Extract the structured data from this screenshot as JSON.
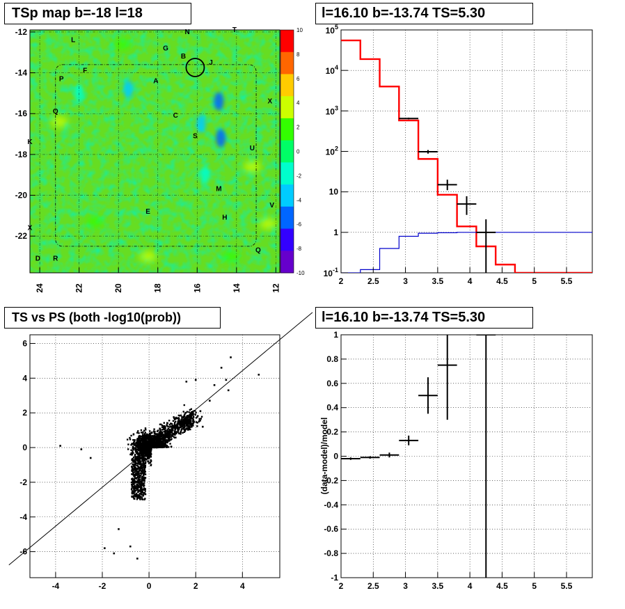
{
  "chart_data": [
    {
      "panel": "tsp-map",
      "type": "heatmap",
      "title": "TSp map b=-18 l=18",
      "xlabel": "",
      "ylabel": "",
      "x_ticks": [
        "24",
        "22",
        "20",
        "18",
        "16",
        "14",
        "12"
      ],
      "x_tick_values": [
        24,
        22,
        20,
        18,
        16,
        14,
        12
      ],
      "xlim": [
        24.5,
        11.8
      ],
      "y_ticks": [
        "-12",
        "-14",
        "-16",
        "-18",
        "-20",
        "-22"
      ],
      "y_tick_values": [
        -12,
        -14,
        -16,
        -18,
        -20,
        -22
      ],
      "ylim": [
        -23.8,
        -11.9
      ],
      "colorbar_ticks": [
        "10",
        "8",
        "6",
        "4",
        "2",
        "0",
        "-2",
        "-4",
        "-6",
        "-8",
        "-10"
      ],
      "colorbar_range": [
        -10,
        10
      ],
      "colorbar_colors": [
        "#ff0000",
        "#ff6600",
        "#ffcc00",
        "#ccff00",
        "#33ff00",
        "#00ff66",
        "#00ffcc",
        "#00ccff",
        "#0066ff",
        "#3300ff",
        "#6600cc"
      ],
      "background_value": 0.8,
      "labels": [
        {
          "text": "N",
          "l": 16.5,
          "b": -12.1
        },
        {
          "text": "T",
          "l": 14.1,
          "b": -12.0
        },
        {
          "text": "L",
          "l": 22.3,
          "b": -12.5
        },
        {
          "text": "G",
          "l": 17.6,
          "b": -12.9
        },
        {
          "text": "B",
          "l": 16.7,
          "b": -13.3
        },
        {
          "text": "J",
          "l": 15.3,
          "b": -13.6
        },
        {
          "text": "F",
          "l": 21.7,
          "b": -14.0
        },
        {
          "text": "P",
          "l": 22.9,
          "b": -14.4
        },
        {
          "text": "A",
          "l": 18.1,
          "b": -14.5
        },
        {
          "text": "X",
          "l": 12.3,
          "b": -15.5
        },
        {
          "text": "Q",
          "l": 23.2,
          "b": -16.0
        },
        {
          "text": "C",
          "l": 17.1,
          "b": -16.2
        },
        {
          "text": "S",
          "l": 16.1,
          "b": -17.2
        },
        {
          "text": "K",
          "l": 24.5,
          "b": -17.5
        },
        {
          "text": "U",
          "l": 13.2,
          "b": -17.8
        },
        {
          "text": "M",
          "l": 14.9,
          "b": -19.8
        },
        {
          "text": "V",
          "l": 12.2,
          "b": -20.6
        },
        {
          "text": "E",
          "l": 18.5,
          "b": -20.9
        },
        {
          "text": "H",
          "l": 14.6,
          "b": -21.2
        },
        {
          "text": "X",
          "l": 24.5,
          "b": -21.7
        },
        {
          "text": "Q",
          "l": 12.9,
          "b": -22.8
        },
        {
          "text": "D",
          "l": 24.1,
          "b": -23.2
        },
        {
          "text": "R",
          "l": 23.2,
          "b": -23.2
        }
      ],
      "circle": {
        "l": 16.1,
        "b": -13.74
      },
      "hotspots": [
        {
          "l": 23.0,
          "b": -16.4,
          "v": 4
        },
        {
          "l": 13.2,
          "b": -18.6,
          "v": 4
        },
        {
          "l": 12.4,
          "b": -21.4,
          "v": 4
        },
        {
          "l": 18.5,
          "b": -23.0,
          "v": 4
        },
        {
          "l": 14.3,
          "b": -23.0,
          "v": 3
        },
        {
          "l": 19.8,
          "b": -12.6,
          "v": 3
        },
        {
          "l": 21.2,
          "b": -21.3,
          "v": 3
        }
      ],
      "coldspots": [
        {
          "l": 14.9,
          "b": -15.4,
          "v": -6
        },
        {
          "l": 14.8,
          "b": -17.2,
          "v": -5
        },
        {
          "l": 15.8,
          "b": -16.5,
          "v": -3
        },
        {
          "l": 19.5,
          "b": -14.8,
          "v": -3
        },
        {
          "l": 22.0,
          "b": -15.0,
          "v": -2
        },
        {
          "l": 15.6,
          "b": -19.0,
          "v": -2
        }
      ]
    },
    {
      "panel": "spectrum",
      "type": "line",
      "title": "l=16.10 b=-13.74 TS=5.30",
      "xlabel": "",
      "ylabel": "",
      "y_scale": "log",
      "xlim": [
        2,
        5.9
      ],
      "ylim": [
        0.1,
        100000
      ],
      "grid": true,
      "x_ticks": [
        "2",
        "2.5",
        "3",
        "3.5",
        "4",
        "4.5",
        "5",
        "5.5"
      ],
      "x_tick_values": [
        2,
        2.5,
        3,
        3.5,
        4,
        4.5,
        5,
        5.5
      ],
      "y_ticks": [
        "10^-1",
        "1",
        "10",
        "10^2",
        "10^3",
        "10^4",
        "10^5"
      ],
      "y_tick_values": [
        0.1,
        1,
        10,
        100,
        1000,
        10000,
        100000
      ],
      "bin_edges": [
        2.0,
        2.3,
        2.6,
        2.9,
        3.2,
        3.5,
        3.8,
        4.1,
        4.4,
        4.7,
        5.0,
        5.3,
        5.6,
        5.9
      ],
      "series": [
        {
          "name": "",
          "color": "#ff0000",
          "values": [
            55000,
            19000,
            4000,
            580,
            65,
            8.5,
            1.4,
            0.45,
            0.16,
            0.1,
            0.1,
            0.1,
            0.1
          ]
        },
        {
          "name": "",
          "color": "#0000cc",
          "values": [
            0.1,
            0.12,
            0.4,
            0.8,
            0.95,
            0.98,
            1.0,
            1.0,
            1.0,
            1.0,
            1.0,
            1.0,
            1.0
          ]
        }
      ],
      "data_points": [
        {
          "x": 3.05,
          "xerr": 0.15,
          "y": 650,
          "ylo": 620,
          "yhi": 680
        },
        {
          "x": 3.35,
          "xerr": 0.15,
          "y": 98,
          "ylo": 88,
          "yhi": 108
        },
        {
          "x": 3.65,
          "xerr": 0.15,
          "y": 15,
          "ylo": 11,
          "yhi": 20
        },
        {
          "x": 3.95,
          "xerr": 0.15,
          "y": 5,
          "ylo": 2.7,
          "yhi": 7.8
        },
        {
          "x": 4.25,
          "xerr": 0.15,
          "y": 1,
          "ylo": 0.1,
          "yhi": 2.1
        }
      ]
    },
    {
      "panel": "ts-vs-ps",
      "type": "scatter",
      "title": "TS vs PS (both -log10(prob))",
      "xlabel": "",
      "ylabel": "",
      "xlim": [
        -5.1,
        5.6
      ],
      "ylim": [
        -7.5,
        6.5
      ],
      "grid": true,
      "x_ticks": [
        "-4",
        "-2",
        "0",
        "2",
        "4"
      ],
      "x_tick_values": [
        -4,
        -2,
        0,
        2,
        4
      ],
      "y_ticks": [
        "-6",
        "-4",
        "-2",
        "0",
        "2",
        "4",
        "6"
      ],
      "y_tick_values": [
        -6,
        -4,
        -2,
        0,
        2,
        4,
        6
      ],
      "fit_line": {
        "slope": 1.12,
        "intercept": -0.05
      },
      "outliers": [
        [
          4.7,
          4.2
        ],
        [
          3.5,
          5.2
        ],
        [
          3.1,
          4.6
        ],
        [
          3.4,
          3.3
        ],
        [
          3.3,
          3.9
        ],
        [
          2.8,
          3.6
        ],
        [
          1.6,
          3.8
        ],
        [
          2.0,
          3.9
        ],
        [
          -3.8,
          0.1
        ],
        [
          -2.9,
          -0.1
        ],
        [
          -2.5,
          -0.6
        ],
        [
          -1.9,
          -5.8
        ],
        [
          -1.5,
          -6.1
        ],
        [
          -0.5,
          -6.4
        ],
        [
          -0.8,
          -5.7
        ],
        [
          -1.3,
          -4.7
        ],
        [
          2.3,
          1.2
        ],
        [
          2.6,
          2.7
        ],
        [
          2.2,
          2.1
        ]
      ],
      "cluster": {
        "n": 2200,
        "seed": 7
      }
    },
    {
      "panel": "residuals",
      "type": "scatter",
      "title": "l=16.10 b=-13.74 TS=5.30",
      "xlabel": "",
      "ylabel": "(data-model)/model",
      "xlim": [
        2,
        5.9
      ],
      "ylim": [
        -1,
        1
      ],
      "grid": true,
      "x_ticks": [
        "2",
        "2.5",
        "3",
        "3.5",
        "4",
        "4.5",
        "5",
        "5.5"
      ],
      "x_tick_values": [
        2,
        2.5,
        3,
        3.5,
        4,
        4.5,
        5,
        5.5
      ],
      "y_ticks": [
        "1",
        "0.8",
        "0.6",
        "0.4",
        "0.2",
        "0",
        "-0.2",
        "-0.4",
        "-0.6",
        "-0.8",
        "-1"
      ],
      "y_tick_values": [
        1,
        0.8,
        0.6,
        0.4,
        0.2,
        0,
        -0.2,
        -0.4,
        -0.6,
        -0.8,
        -1
      ],
      "data_points": [
        {
          "x": 2.15,
          "xerr": 0.15,
          "y": -0.02,
          "ylo": -0.03,
          "yhi": -0.01
        },
        {
          "x": 2.45,
          "xerr": 0.15,
          "y": -0.01,
          "ylo": -0.02,
          "yhi": 0.0
        },
        {
          "x": 2.75,
          "xerr": 0.15,
          "y": 0.01,
          "ylo": -0.01,
          "yhi": 0.03
        },
        {
          "x": 3.05,
          "xerr": 0.15,
          "y": 0.13,
          "ylo": 0.09,
          "yhi": 0.17
        },
        {
          "x": 3.35,
          "xerr": 0.15,
          "y": 0.5,
          "ylo": 0.35,
          "yhi": 0.65
        },
        {
          "x": 3.65,
          "xerr": 0.15,
          "y": 0.75,
          "ylo": 0.3,
          "yhi": 1.0
        },
        {
          "x": 4.25,
          "xerr": 0.15,
          "y": 1.0,
          "ylo": -1.0,
          "yhi": 1.0
        }
      ]
    }
  ]
}
